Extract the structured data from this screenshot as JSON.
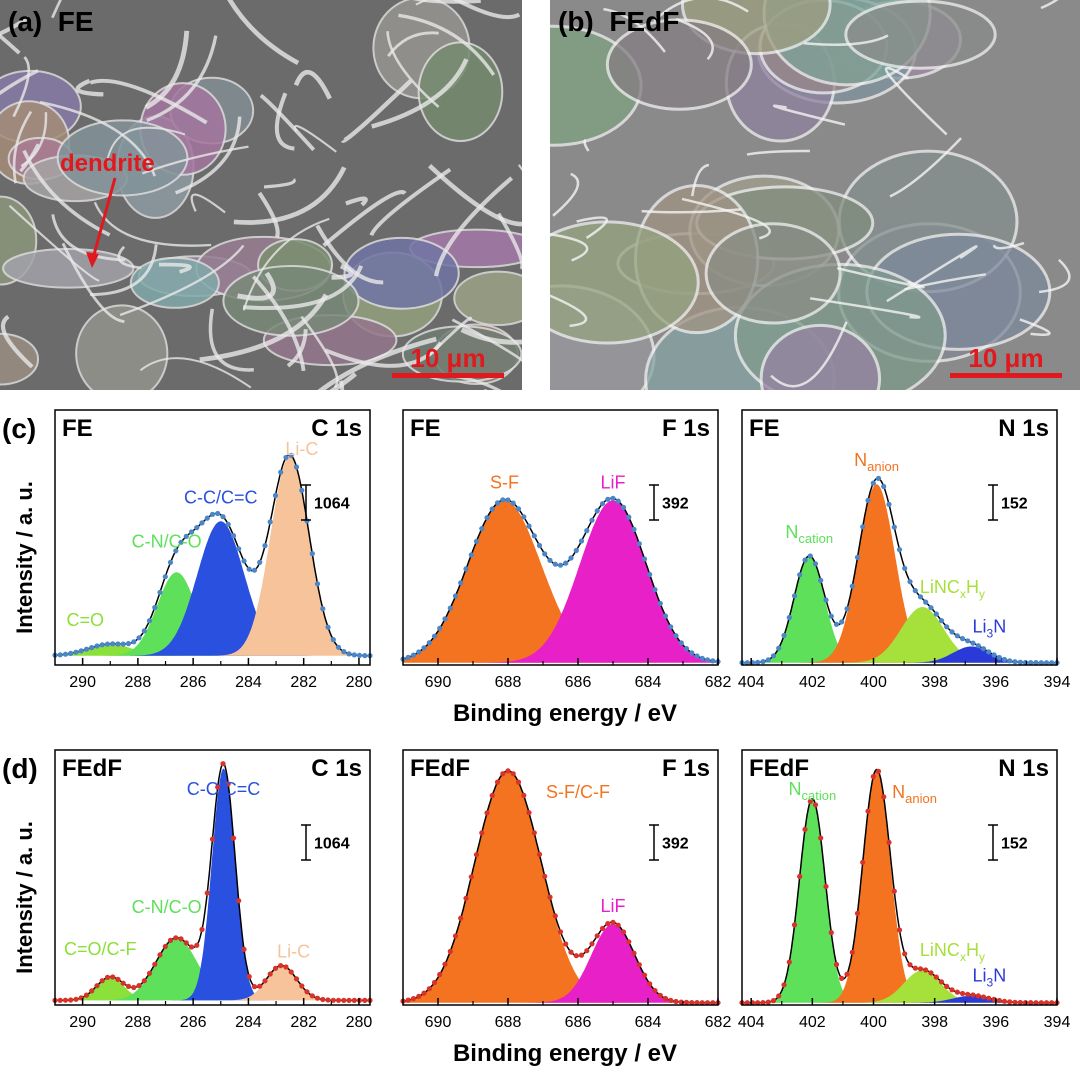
{
  "panels": {
    "a": {
      "letter": "(a)",
      "title": "FE",
      "scale": "10 μm",
      "annotation": "dendrite"
    },
    "b": {
      "letter": "(b)",
      "title": "FEdF",
      "scale": "10 μm"
    }
  },
  "colors": {
    "C=O": "#8be03a",
    "C-N/C-O": "#5ee05a",
    "C-C/C=C": "#2a50e0",
    "Li-C": "#f6c39a",
    "S-F": "#f37320",
    "LiF": "#e820c8",
    "Ncation": "#5ee05a",
    "Nanion": "#f37320",
    "LiNCxHy": "#a6e03a",
    "Li3N": "#2a3ad8",
    "points_c": "#4a86c8",
    "points_d": "#d8332a"
  },
  "axis_common": {
    "ylabel": "Intensity / a. u.",
    "xlabel": "Binding energy / eV"
  },
  "chart_data": [
    {
      "id": "c-C1s",
      "row": "c",
      "type": "area",
      "sample": "FE",
      "element": "C 1s",
      "xlim": [
        291,
        279.6
      ],
      "xticks": [
        290,
        288,
        286,
        284,
        282,
        280
      ],
      "scalebar": "1064",
      "baseline": 0.04,
      "ylim": [
        0,
        1.1
      ],
      "peaks": [
        {
          "name": "C=O",
          "label": "C=O",
          "center": 289.0,
          "height": 0.05,
          "width": 0.8,
          "color": "#8be03a"
        },
        {
          "name": "C-N/C-O",
          "label": "C-N/C-O",
          "center": 286.6,
          "height": 0.36,
          "width": 0.7,
          "color": "#5ee05a"
        },
        {
          "name": "C-C/C=C",
          "label": "C-C/C=C",
          "center": 285.0,
          "height": 0.58,
          "width": 0.85,
          "color": "#2a50e0"
        },
        {
          "name": "Li-C",
          "label": "Li-C",
          "center": 282.5,
          "height": 0.86,
          "width": 0.7,
          "color": "#f6c39a"
        }
      ]
    },
    {
      "id": "c-F1s",
      "row": "c",
      "type": "area",
      "sample": "FE",
      "element": "F 1s",
      "xlim": [
        691,
        682
      ],
      "xticks": [
        690,
        688,
        686,
        684,
        682
      ],
      "scalebar": "392",
      "baseline": 0.01,
      "ylim": [
        0,
        1.1
      ],
      "peaks": [
        {
          "name": "S-F",
          "label": "S-F",
          "center": 688.1,
          "height": 0.7,
          "width": 1.05,
          "color": "#f37320"
        },
        {
          "name": "LiF",
          "label": "LiF",
          "center": 685.0,
          "height": 0.7,
          "width": 0.95,
          "color": "#e820c8"
        }
      ]
    },
    {
      "id": "c-N1s",
      "row": "c",
      "type": "area",
      "sample": "FE",
      "element": "N 1s",
      "xlim": [
        404.3,
        394
      ],
      "xticks": [
        404,
        402,
        400,
        398,
        396,
        394
      ],
      "scalebar": "152",
      "baseline": 0.01,
      "ylim": [
        0,
        1.1
      ],
      "peaks": [
        {
          "name": "Ncation",
          "label": "Ncation",
          "center": 402.1,
          "height": 0.46,
          "width": 0.5,
          "color": "#5ee05a"
        },
        {
          "name": "Nanion",
          "label": "Nanion",
          "center": 399.9,
          "height": 0.77,
          "width": 0.6,
          "color": "#f37320"
        },
        {
          "name": "LiNCxHy",
          "label": "LiNCxHy",
          "center": 398.4,
          "height": 0.24,
          "width": 0.7,
          "color": "#a6e03a"
        },
        {
          "name": "Li3N",
          "label": "Li3N",
          "center": 396.8,
          "height": 0.07,
          "width": 0.6,
          "color": "#2a3ad8"
        }
      ]
    },
    {
      "id": "d-C1s",
      "row": "d",
      "type": "area",
      "sample": "FEdF",
      "element": "C 1s",
      "xlim": [
        291,
        279.6
      ],
      "xticks": [
        290,
        288,
        286,
        284,
        282,
        280
      ],
      "scalebar": "1064",
      "baseline": 0.02,
      "ylim": [
        0,
        1.1
      ],
      "peaks": [
        {
          "name": "C=O/C-F",
          "label": "C=O/C-F",
          "center": 289.0,
          "height": 0.1,
          "width": 0.5,
          "color": "#8be03a"
        },
        {
          "name": "C-N/C-O",
          "label": "C-N/C-O",
          "center": 286.6,
          "height": 0.27,
          "width": 0.75,
          "color": "#5ee05a"
        },
        {
          "name": "C-C/C=C",
          "label": "C-C/C=C",
          "center": 284.9,
          "height": 1.0,
          "width": 0.42,
          "color": "#2a50e0"
        },
        {
          "name": "Li-C",
          "label": "Li-C",
          "center": 282.8,
          "height": 0.15,
          "width": 0.55,
          "color": "#f6c39a"
        }
      ]
    },
    {
      "id": "d-F1s",
      "row": "d",
      "type": "area",
      "sample": "FEdF",
      "element": "F 1s",
      "xlim": [
        691,
        682
      ],
      "xticks": [
        690,
        688,
        686,
        684,
        682
      ],
      "scalebar": "392",
      "baseline": 0.01,
      "ylim": [
        0,
        1.1
      ],
      "peaks": [
        {
          "name": "S-F/C-F",
          "label": "S-F/C-F",
          "center": 688.0,
          "height": 1.0,
          "width": 0.95,
          "color": "#f37320"
        },
        {
          "name": "LiF",
          "label": "LiF",
          "center": 685.0,
          "height": 0.34,
          "width": 0.62,
          "color": "#e820c8"
        }
      ]
    },
    {
      "id": "d-N1s",
      "row": "d",
      "type": "area",
      "sample": "FEdF",
      "element": "N 1s",
      "xlim": [
        404.3,
        394
      ],
      "xticks": [
        404,
        402,
        400,
        398,
        396,
        394
      ],
      "scalebar": "152",
      "baseline": 0.01,
      "ylim": [
        0,
        1.1
      ],
      "peaks": [
        {
          "name": "Ncation",
          "label": "Ncation",
          "center": 402.0,
          "height": 0.88,
          "width": 0.42,
          "color": "#5ee05a"
        },
        {
          "name": "Nanion",
          "label": "Nanion",
          "center": 399.9,
          "height": 1.0,
          "width": 0.45,
          "color": "#f37320"
        },
        {
          "name": "LiNCxHy",
          "label": "LiNCxHy",
          "center": 398.4,
          "height": 0.14,
          "width": 0.6,
          "color": "#a6e03a"
        },
        {
          "name": "Li3N",
          "label": "Li3N",
          "center": 396.8,
          "height": 0.03,
          "width": 0.6,
          "color": "#2a3ad8"
        }
      ]
    }
  ]
}
